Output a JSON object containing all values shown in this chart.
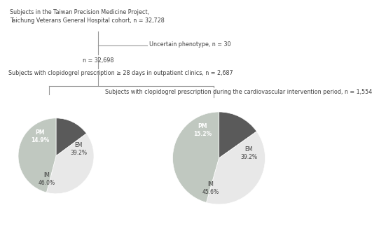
{
  "title_text": "Subjects in the Taiwan Precision Medicine Project,\nTaichung Veterans General Hospital cohort, n = 32,728",
  "uncertain_text": "Uncertain phenotype, n = 30",
  "n32698_text": "n = 32,698",
  "box1_text": "Subjects with clopidogrel prescription ≥ 28 days in outpatient clinics, n = 2,687",
  "box2_text": "Subjects with clopidogrel prescription during the cardiovascular intervention period, n = 1,554",
  "pie1": {
    "sizes": [
      14.9,
      39.2,
      46.0
    ],
    "colors": [
      "#5a5a5a",
      "#e8e8e8",
      "#c0c8c0"
    ],
    "pm_label": "PM\n14.9%",
    "em_label": "EM\n39.2%",
    "im_label": "IM\n46.0%"
  },
  "pie2": {
    "sizes": [
      15.2,
      39.2,
      45.6
    ],
    "colors": [
      "#5a5a5a",
      "#e8e8e8",
      "#c0c8c0"
    ],
    "pm_label": "PM\n15.2%",
    "em_label": "EM\n39.2%",
    "im_label": "IM\n45.6%"
  },
  "bg_color": "#ffffff",
  "text_color": "#404040",
  "line_color": "#999999",
  "fs_main": 5.8,
  "fs_pie": 5.5
}
